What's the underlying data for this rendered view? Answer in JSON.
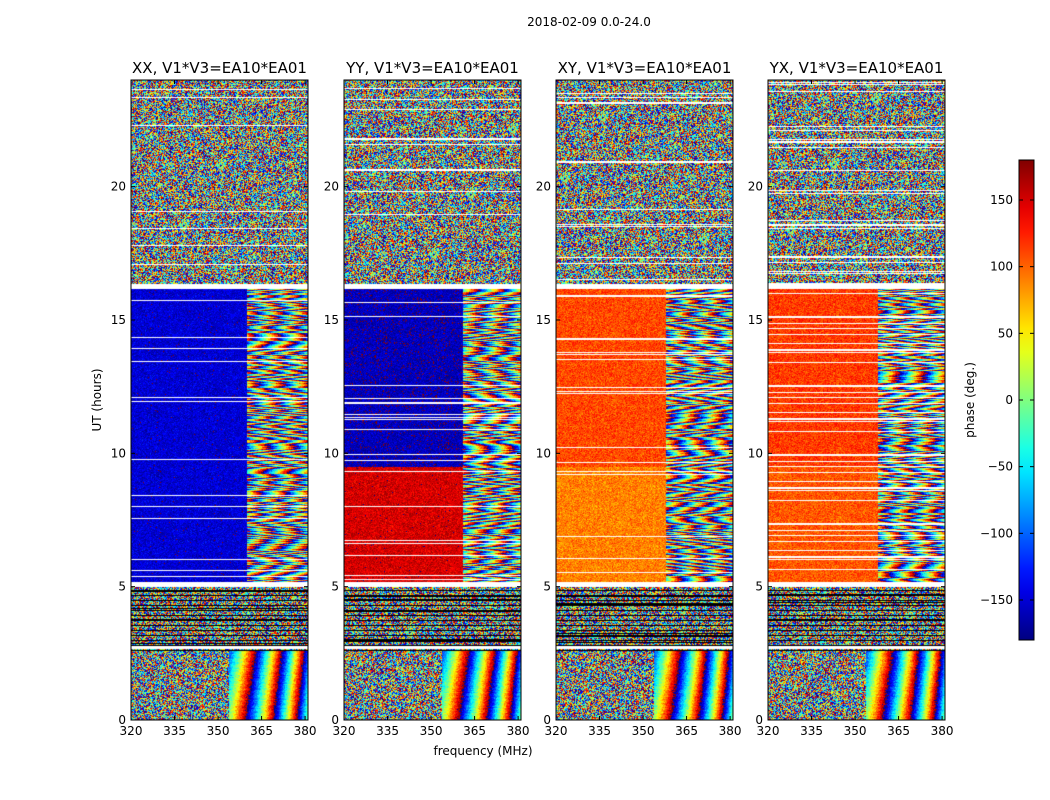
{
  "chart_data": {
    "type": "heatmap",
    "suptitle": "2018-02-09 0.0-24.0",
    "xlabel": "frequency (MHz)",
    "ylabel": "UT (hours)",
    "xlim": [
      320,
      381
    ],
    "ylim": [
      0,
      24
    ],
    "xticks": [
      320,
      335,
      350,
      365,
      380
    ],
    "yticks": [
      0,
      5,
      10,
      15,
      20
    ],
    "colorbar": {
      "label": "phase (deg.)",
      "range": [
        -180,
        180
      ],
      "ticks": [
        150,
        100,
        50,
        0,
        -50,
        -100,
        -150
      ],
      "tick_labels": [
        "150",
        "100",
        "50",
        "0",
        "−50",
        "−100",
        "−150"
      ],
      "colormap": "jet"
    },
    "flagged_gaps_hours": [
      [
        5.0,
        5.2
      ],
      [
        16.2,
        16.35
      ],
      [
        2.7,
        2.8
      ]
    ],
    "panels": [
      {
        "title": "XX, V1*V3=EA10*EA01",
        "polarization": "XX",
        "coherent_phase_deg_0_5_to_9_5h": -150,
        "coherent_phase_deg_9_5_to_16h": -150,
        "coherent_band_edge_mhz": 360
      },
      {
        "title": "YY, V1*V3=EA10*EA01",
        "polarization": "YY",
        "coherent_phase_deg_0_5_to_9_5h": 150,
        "coherent_phase_deg_9_5_to_16h": -160,
        "coherent_band_edge_mhz": 361
      },
      {
        "title": "XY, V1*V3=EA10*EA01",
        "polarization": "XY",
        "coherent_phase_deg_0_5_to_9_5h": 90,
        "coherent_phase_deg_9_5_to_16h": 110,
        "coherent_band_edge_mhz": 358
      },
      {
        "title": "YX, V1*V3=EA10*EA01",
        "polarization": "YX",
        "coherent_phase_deg_0_5_to_9_5h": 105,
        "coherent_phase_deg_9_5_to_16h": 115,
        "coherent_band_edge_mhz": 358
      }
    ]
  }
}
